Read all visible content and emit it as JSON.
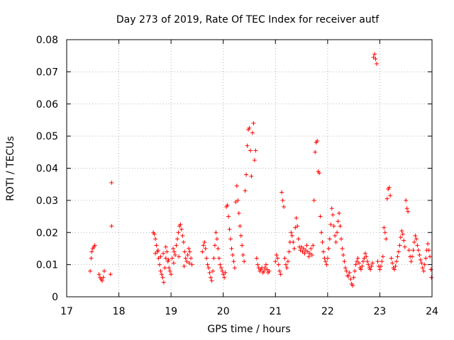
{
  "chart_data": {
    "type": "scatter",
    "title": "Day 273 of 2019, Rate Of TEC Index for receiver autf",
    "xlabel": "GPS time / hours",
    "ylabel": "ROTI / TECUs",
    "xlim": [
      17,
      24
    ],
    "ylim": [
      0,
      0.08
    ],
    "x_ticks": [
      "17",
      "18",
      "19",
      "20",
      "21",
      "22",
      "23",
      "24"
    ],
    "y_ticks": [
      "0",
      "0.01",
      "0.02",
      "0.03",
      "0.04",
      "0.05",
      "0.06",
      "0.07",
      "0.08"
    ],
    "grid": true,
    "marker": "+",
    "color": "#ff0000",
    "series": [
      {
        "name": "ROTI",
        "points": [
          [
            17.45,
            0.008
          ],
          [
            17.47,
            0.012
          ],
          [
            17.48,
            0.014
          ],
          [
            17.5,
            0.015
          ],
          [
            17.52,
            0.0155
          ],
          [
            17.54,
            0.016
          ],
          [
            17.62,
            0.007
          ],
          [
            17.64,
            0.006
          ],
          [
            17.66,
            0.0055
          ],
          [
            17.68,
            0.005
          ],
          [
            17.7,
            0.006
          ],
          [
            17.72,
            0.008
          ],
          [
            17.84,
            0.007
          ],
          [
            17.86,
            0.022
          ],
          [
            17.86,
            0.0355
          ],
          [
            18.66,
            0.02
          ],
          [
            18.68,
            0.0195
          ],
          [
            18.7,
            0.018
          ],
          [
            18.72,
            0.016
          ],
          [
            18.74,
            0.014
          ],
          [
            18.76,
            0.012
          ],
          [
            18.78,
            0.01
          ],
          [
            18.8,
            0.008
          ],
          [
            18.82,
            0.007
          ],
          [
            18.84,
            0.006
          ],
          [
            18.86,
            0.0045
          ],
          [
            18.88,
            0.009
          ],
          [
            18.9,
            0.012
          ],
          [
            18.92,
            0.014
          ],
          [
            18.94,
            0.011
          ],
          [
            18.96,
            0.009
          ],
          [
            18.98,
            0.008
          ],
          [
            19.0,
            0.007
          ],
          [
            19.02,
            0.012
          ],
          [
            19.04,
            0.015
          ],
          [
            19.06,
            0.014
          ],
          [
            19.08,
            0.013
          ],
          [
            19.1,
            0.016
          ],
          [
            19.12,
            0.018
          ],
          [
            19.14,
            0.02
          ],
          [
            19.16,
            0.022
          ],
          [
            19.18,
            0.0225
          ],
          [
            19.2,
            0.021
          ],
          [
            19.22,
            0.019
          ],
          [
            19.24,
            0.017
          ],
          [
            19.26,
            0.014
          ],
          [
            19.28,
            0.012
          ],
          [
            19.3,
            0.011
          ],
          [
            19.32,
            0.013
          ],
          [
            19.34,
            0.015
          ],
          [
            19.36,
            0.014
          ],
          [
            19.38,
            0.012
          ],
          [
            19.4,
            0.01
          ],
          [
            18.7,
            0.0135
          ],
          [
            18.75,
            0.0145
          ],
          [
            18.8,
            0.0125
          ],
          [
            18.85,
            0.0135
          ],
          [
            18.9,
            0.0155
          ],
          [
            18.95,
            0.0115
          ],
          [
            19.05,
            0.0105
          ],
          [
            19.15,
            0.0125
          ],
          [
            19.25,
            0.0095
          ],
          [
            19.35,
            0.0105
          ],
          [
            19.6,
            0.014
          ],
          [
            19.62,
            0.016
          ],
          [
            19.64,
            0.017
          ],
          [
            19.66,
            0.015
          ],
          [
            19.68,
            0.012
          ],
          [
            19.7,
            0.01
          ],
          [
            19.72,
            0.009
          ],
          [
            19.74,
            0.0075
          ],
          [
            19.76,
            0.006
          ],
          [
            19.78,
            0.005
          ],
          [
            19.8,
            0.008
          ],
          [
            19.82,
            0.012
          ],
          [
            19.84,
            0.016
          ],
          [
            19.86,
            0.02
          ],
          [
            19.88,
            0.018
          ],
          [
            19.9,
            0.015
          ],
          [
            19.92,
            0.012
          ],
          [
            19.94,
            0.01
          ],
          [
            19.96,
            0.009
          ],
          [
            19.98,
            0.008
          ],
          [
            20.0,
            0.007
          ],
          [
            20.02,
            0.006
          ],
          [
            20.04,
            0.0075
          ],
          [
            20.06,
            0.028
          ],
          [
            20.08,
            0.0285
          ],
          [
            20.1,
            0.025
          ],
          [
            20.12,
            0.021
          ],
          [
            20.14,
            0.018
          ],
          [
            20.16,
            0.015
          ],
          [
            20.18,
            0.013
          ],
          [
            20.2,
            0.011
          ],
          [
            20.22,
            0.009
          ],
          [
            20.24,
            0.0295
          ],
          [
            20.26,
            0.0345
          ],
          [
            20.28,
            0.03
          ],
          [
            20.3,
            0.026
          ],
          [
            20.32,
            0.022
          ],
          [
            20.34,
            0.019
          ],
          [
            20.36,
            0.016
          ],
          [
            20.38,
            0.013
          ],
          [
            20.4,
            0.011
          ],
          [
            20.42,
            0.033
          ],
          [
            20.44,
            0.038
          ],
          [
            20.46,
            0.047
          ],
          [
            20.48,
            0.052
          ],
          [
            20.5,
            0.0525
          ],
          [
            20.52,
            0.0455
          ],
          [
            20.54,
            0.0375
          ],
          [
            20.56,
            0.051
          ],
          [
            20.58,
            0.054
          ],
          [
            20.6,
            0.0425
          ],
          [
            20.62,
            0.0455
          ],
          [
            20.64,
            0.012
          ],
          [
            20.66,
            0.01
          ],
          [
            20.68,
            0.009
          ],
          [
            20.7,
            0.008
          ],
          [
            20.72,
            0.0085
          ],
          [
            20.74,
            0.009
          ],
          [
            20.76,
            0.0075
          ],
          [
            20.78,
            0.008
          ],
          [
            20.8,
            0.009
          ],
          [
            20.82,
            0.01
          ],
          [
            20.84,
            0.0085
          ],
          [
            20.86,
            0.0075
          ],
          [
            20.88,
            0.008
          ],
          [
            21.0,
            0.011
          ],
          [
            21.02,
            0.013
          ],
          [
            21.04,
            0.012
          ],
          [
            21.06,
            0.01
          ],
          [
            21.08,
            0.008
          ],
          [
            21.1,
            0.007
          ],
          [
            21.12,
            0.0325
          ],
          [
            21.14,
            0.03
          ],
          [
            21.16,
            0.028
          ],
          [
            21.18,
            0.012
          ],
          [
            21.2,
            0.01
          ],
          [
            21.22,
            0.009
          ],
          [
            21.24,
            0.011
          ],
          [
            21.26,
            0.014
          ],
          [
            21.28,
            0.017
          ],
          [
            21.3,
            0.02
          ],
          [
            21.32,
            0.019
          ],
          [
            21.34,
            0.017
          ],
          [
            21.36,
            0.015
          ],
          [
            21.38,
            0.0215
          ],
          [
            21.4,
            0.0245
          ],
          [
            21.42,
            0.022
          ],
          [
            21.44,
            0.018
          ],
          [
            21.46,
            0.0155
          ],
          [
            21.48,
            0.0145
          ],
          [
            21.5,
            0.0155
          ],
          [
            21.52,
            0.014
          ],
          [
            21.54,
            0.015
          ],
          [
            21.56,
            0.0135
          ],
          [
            21.58,
            0.0145
          ],
          [
            21.6,
            0.016
          ],
          [
            21.62,
            0.014
          ],
          [
            21.64,
            0.0125
          ],
          [
            21.66,
            0.0135
          ],
          [
            21.68,
            0.015
          ],
          [
            21.7,
            0.013
          ],
          [
            21.72,
            0.016
          ],
          [
            21.74,
            0.03
          ],
          [
            21.76,
            0.045
          ],
          [
            21.78,
            0.048
          ],
          [
            21.8,
            0.0485
          ],
          [
            21.82,
            0.039
          ],
          [
            21.84,
            0.0385
          ],
          [
            21.86,
            0.025
          ],
          [
            21.88,
            0.02
          ],
          [
            21.9,
            0.017
          ],
          [
            21.92,
            0.014
          ],
          [
            21.94,
            0.012
          ],
          [
            21.96,
            0.011
          ],
          [
            21.98,
            0.01
          ],
          [
            22.0,
            0.012
          ],
          [
            22.02,
            0.015
          ],
          [
            22.04,
            0.018
          ],
          [
            22.06,
            0.0225
          ],
          [
            22.08,
            0.0275
          ],
          [
            22.1,
            0.0255
          ],
          [
            22.12,
            0.022
          ],
          [
            22.14,
            0.019
          ],
          [
            22.16,
            0.017
          ],
          [
            22.18,
            0.02
          ],
          [
            22.2,
            0.0235
          ],
          [
            22.22,
            0.026
          ],
          [
            22.24,
            0.022
          ],
          [
            22.26,
            0.018
          ],
          [
            22.28,
            0.015
          ],
          [
            22.3,
            0.013
          ],
          [
            22.32,
            0.011
          ],
          [
            22.34,
            0.009
          ],
          [
            22.36,
            0.008
          ],
          [
            22.38,
            0.0065
          ],
          [
            22.4,
            0.0065
          ],
          [
            22.42,
            0.0075
          ],
          [
            22.44,
            0.0055
          ],
          [
            22.46,
            0.004
          ],
          [
            22.48,
            0.0035
          ],
          [
            22.5,
            0.006
          ],
          [
            22.52,
            0.008
          ],
          [
            22.54,
            0.01
          ],
          [
            22.56,
            0.011
          ],
          [
            22.58,
            0.012
          ],
          [
            22.6,
            0.0105
          ],
          [
            22.62,
            0.009
          ],
          [
            22.64,
            0.0085
          ],
          [
            22.66,
            0.0095
          ],
          [
            22.68,
            0.011
          ],
          [
            22.7,
            0.012
          ],
          [
            22.72,
            0.0135
          ],
          [
            22.74,
            0.0125
          ],
          [
            22.76,
            0.011
          ],
          [
            22.78,
            0.01
          ],
          [
            22.8,
            0.009
          ],
          [
            22.82,
            0.0085
          ],
          [
            22.84,
            0.0095
          ],
          [
            22.86,
            0.0105
          ],
          [
            22.88,
            0.0745
          ],
          [
            22.9,
            0.0755
          ],
          [
            22.92,
            0.074
          ],
          [
            22.94,
            0.0725
          ],
          [
            22.96,
            0.011
          ],
          [
            22.98,
            0.0095
          ],
          [
            23.0,
            0.0085
          ],
          [
            23.02,
            0.0095
          ],
          [
            23.04,
            0.011
          ],
          [
            23.06,
            0.0125
          ],
          [
            23.08,
            0.0215
          ],
          [
            23.1,
            0.02
          ],
          [
            23.12,
            0.018
          ],
          [
            23.14,
            0.0305
          ],
          [
            23.16,
            0.0335
          ],
          [
            23.18,
            0.034
          ],
          [
            23.2,
            0.0315
          ],
          [
            23.22,
            0.012
          ],
          [
            23.24,
            0.0105
          ],
          [
            23.26,
            0.009
          ],
          [
            23.28,
            0.0085
          ],
          [
            23.3,
            0.0095
          ],
          [
            23.32,
            0.011
          ],
          [
            23.34,
            0.0125
          ],
          [
            23.36,
            0.014
          ],
          [
            23.38,
            0.016
          ],
          [
            23.4,
            0.0185
          ],
          [
            23.42,
            0.0205
          ],
          [
            23.44,
            0.0195
          ],
          [
            23.46,
            0.0175
          ],
          [
            23.48,
            0.0155
          ],
          [
            23.5,
            0.03
          ],
          [
            23.52,
            0.0275
          ],
          [
            23.54,
            0.0265
          ],
          [
            23.56,
            0.0145
          ],
          [
            23.58,
            0.0125
          ],
          [
            23.6,
            0.011
          ],
          [
            23.62,
            0.0125
          ],
          [
            23.64,
            0.0145
          ],
          [
            23.66,
            0.017
          ],
          [
            23.68,
            0.019
          ],
          [
            23.7,
            0.018
          ],
          [
            23.72,
            0.016
          ],
          [
            23.74,
            0.0145
          ],
          [
            23.76,
            0.013
          ],
          [
            23.78,
            0.0115
          ],
          [
            23.8,
            0.0105
          ],
          [
            23.82,
            0.009
          ],
          [
            23.84,
            0.008
          ],
          [
            23.86,
            0.01
          ],
          [
            23.88,
            0.012
          ],
          [
            23.9,
            0.0145
          ],
          [
            23.92,
            0.0165
          ],
          [
            23.94,
            0.0145
          ],
          [
            23.96,
            0.0125
          ],
          [
            23.98,
            0.0085
          ],
          [
            23.99,
            0.006
          ]
        ]
      }
    ]
  }
}
